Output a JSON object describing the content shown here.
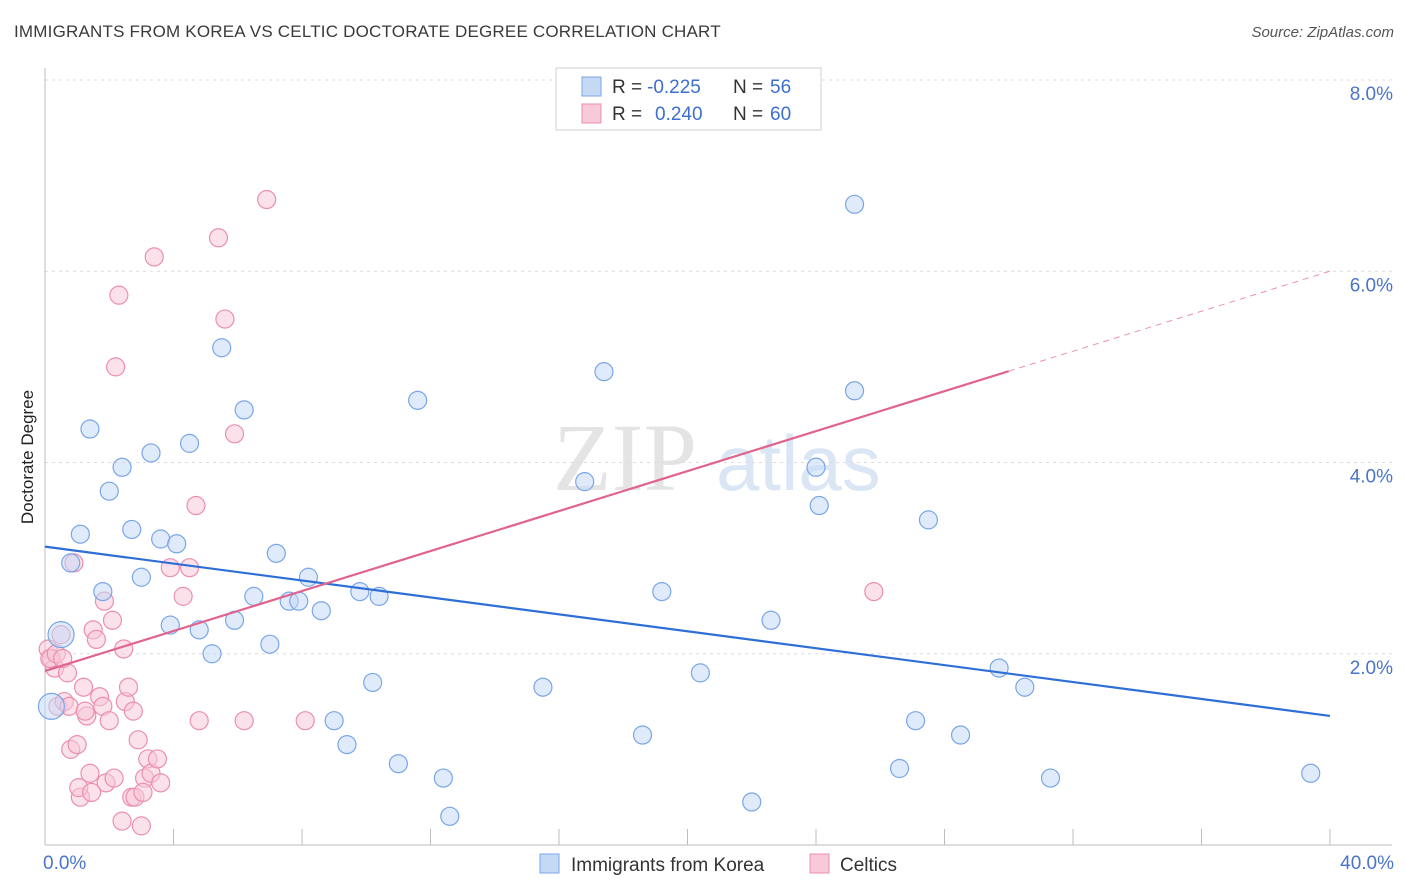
{
  "header": {
    "title": "IMMIGRANTS FROM KOREA VS CELTIC DOCTORATE DEGREE CORRELATION CHART",
    "source": "Source: ZipAtlas.com"
  },
  "watermark": {
    "zip": "ZIP",
    "atlas": "atlas"
  },
  "chart_data": {
    "type": "scatter",
    "title": "IMMIGRANTS FROM KOREA VS CELTIC DOCTORATE DEGREE CORRELATION CHART",
    "ylabel": "Doctorate Degree",
    "xlabel": "",
    "xlim": [
      0,
      40
    ],
    "ylim": [
      0,
      8
    ],
    "x_tick_labels": {
      "left": "0.0%",
      "right": "40.0%"
    },
    "y_ticks": [
      {
        "value": 2,
        "label": "2.0%"
      },
      {
        "value": 4,
        "label": "4.0%"
      },
      {
        "value": 6,
        "label": "6.0%"
      },
      {
        "value": 8,
        "label": "8.0%"
      }
    ],
    "legend": {
      "r_label": "R =",
      "n_label": "N =",
      "entries": [
        {
          "name": "Immigrants from Korea",
          "r": "-0.225",
          "n": "56"
        },
        {
          "name": "Celtics",
          "r": "0.240",
          "n": "60"
        }
      ]
    },
    "series": [
      {
        "name": "Immigrants from Korea",
        "color": "#7aa6e8",
        "fill": "#c5d9f5",
        "trend": {
          "x0": 0,
          "y0": 3.12,
          "x1": 40,
          "y1": 1.35,
          "dashed_from": null
        },
        "points": [
          [
            0.2,
            1.45
          ],
          [
            0.5,
            2.2
          ],
          [
            0.8,
            2.95
          ],
          [
            1.1,
            3.25
          ],
          [
            1.4,
            4.35
          ],
          [
            1.8,
            2.65
          ],
          [
            2.0,
            3.7
          ],
          [
            2.4,
            3.95
          ],
          [
            2.7,
            3.3
          ],
          [
            3.0,
            2.8
          ],
          [
            3.3,
            4.1
          ],
          [
            3.6,
            3.2
          ],
          [
            3.9,
            2.3
          ],
          [
            4.1,
            3.15
          ],
          [
            4.5,
            4.2
          ],
          [
            4.8,
            2.25
          ],
          [
            5.2,
            2.0
          ],
          [
            5.5,
            5.2
          ],
          [
            5.9,
            2.35
          ],
          [
            6.2,
            4.55
          ],
          [
            6.5,
            2.6
          ],
          [
            7.0,
            2.1
          ],
          [
            7.2,
            3.05
          ],
          [
            7.6,
            2.55
          ],
          [
            7.9,
            2.55
          ],
          [
            8.2,
            2.8
          ],
          [
            8.6,
            2.45
          ],
          [
            9.0,
            1.3
          ],
          [
            9.4,
            1.05
          ],
          [
            9.8,
            2.65
          ],
          [
            10.2,
            1.7
          ],
          [
            10.4,
            2.6
          ],
          [
            11.0,
            0.85
          ],
          [
            11.6,
            4.65
          ],
          [
            12.4,
            0.7
          ],
          [
            12.6,
            0.3
          ],
          [
            15.5,
            1.65
          ],
          [
            16.8,
            3.8
          ],
          [
            17.4,
            4.95
          ],
          [
            18.6,
            1.15
          ],
          [
            19.2,
            2.65
          ],
          [
            20.4,
            1.8
          ],
          [
            22.6,
            2.35
          ],
          [
            22.0,
            0.45
          ],
          [
            24.0,
            3.95
          ],
          [
            24.1,
            3.55
          ],
          [
            25.2,
            6.7
          ],
          [
            25.2,
            4.75
          ],
          [
            26.6,
            0.8
          ],
          [
            27.1,
            1.3
          ],
          [
            27.5,
            3.4
          ],
          [
            28.5,
            1.15
          ],
          [
            29.7,
            1.85
          ],
          [
            30.5,
            1.65
          ],
          [
            31.3,
            0.7
          ],
          [
            39.4,
            0.75
          ]
        ]
      },
      {
        "name": "Celtics",
        "color": "#ec8fad",
        "fill": "#f8c9d8",
        "trend": {
          "x0": 0,
          "y0": 1.82,
          "x1": 40,
          "y1": 6.0,
          "dashed_from": 30
        },
        "points": [
          [
            0.1,
            2.05
          ],
          [
            0.2,
            1.95
          ],
          [
            0.3,
            1.85
          ],
          [
            0.4,
            1.45
          ],
          [
            0.5,
            2.2
          ],
          [
            0.6,
            1.5
          ],
          [
            0.7,
            1.8
          ],
          [
            0.8,
            1.0
          ],
          [
            0.9,
            2.95
          ],
          [
            1.0,
            1.05
          ],
          [
            1.1,
            0.5
          ],
          [
            1.2,
            1.65
          ],
          [
            1.3,
            1.35
          ],
          [
            1.4,
            0.75
          ],
          [
            1.5,
            2.25
          ],
          [
            1.6,
            2.15
          ],
          [
            1.7,
            1.55
          ],
          [
            1.8,
            1.45
          ],
          [
            1.9,
            0.65
          ],
          [
            2.0,
            1.3
          ],
          [
            2.1,
            2.35
          ],
          [
            2.2,
            5.0
          ],
          [
            2.3,
            5.75
          ],
          [
            2.4,
            0.25
          ],
          [
            2.5,
            1.5
          ],
          [
            2.6,
            1.65
          ],
          [
            2.7,
            0.5
          ],
          [
            2.8,
            0.5
          ],
          [
            2.9,
            1.1
          ],
          [
            3.0,
            0.2
          ],
          [
            3.1,
            0.7
          ],
          [
            3.2,
            0.9
          ],
          [
            3.3,
            0.75
          ],
          [
            3.4,
            6.15
          ],
          [
            3.6,
            0.65
          ],
          [
            3.9,
            2.9
          ],
          [
            4.3,
            2.6
          ],
          [
            4.5,
            2.9
          ],
          [
            4.7,
            3.55
          ],
          [
            4.8,
            1.3
          ],
          [
            5.4,
            6.35
          ],
          [
            5.6,
            5.5
          ],
          [
            5.9,
            4.3
          ],
          [
            6.2,
            1.3
          ],
          [
            6.9,
            6.75
          ],
          [
            8.1,
            1.3
          ],
          [
            25.8,
            2.65
          ],
          [
            0.15,
            1.95
          ],
          [
            0.35,
            2.0
          ],
          [
            0.55,
            1.95
          ],
          [
            0.75,
            1.45
          ],
          [
            1.05,
            0.6
          ],
          [
            1.25,
            1.4
          ],
          [
            1.45,
            0.55
          ],
          [
            1.85,
            2.55
          ],
          [
            2.15,
            0.7
          ],
          [
            2.45,
            2.05
          ],
          [
            2.75,
            1.4
          ],
          [
            3.05,
            0.55
          ],
          [
            3.5,
            0.9
          ]
        ]
      }
    ]
  }
}
